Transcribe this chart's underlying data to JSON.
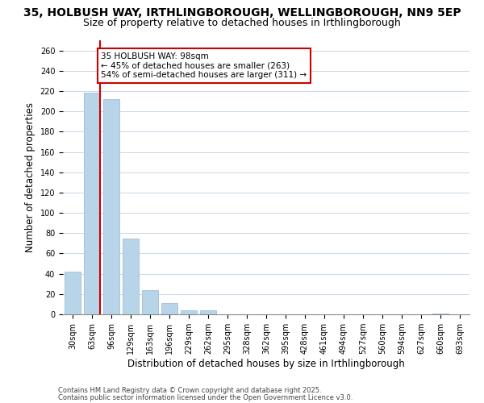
{
  "title": "35, HOLBUSH WAY, IRTHLINGBOROUGH, WELLINGBOROUGH, NN9 5EP",
  "subtitle": "Size of property relative to detached houses in Irthlingborough",
  "xlabel": "Distribution of detached houses by size in Irthlingborough",
  "ylabel": "Number of detached properties",
  "bar_values": [
    42,
    218,
    212,
    75,
    24,
    11,
    4,
    4,
    0,
    0,
    0,
    0,
    0,
    0,
    0,
    0,
    0,
    0,
    0,
    1,
    0
  ],
  "bar_labels": [
    "30sqm",
    "63sqm",
    "96sqm",
    "129sqm",
    "163sqm",
    "196sqm",
    "229sqm",
    "262sqm",
    "295sqm",
    "328sqm",
    "362sqm",
    "395sqm",
    "428sqm",
    "461sqm",
    "494sqm",
    "527sqm",
    "560sqm",
    "594sqm",
    "627sqm",
    "660sqm",
    "693sqm"
  ],
  "bar_color": "#b8d4e8",
  "bar_edge_color": "#a0bfd8",
  "grid_color": "#c8d8e8",
  "vline_color": "#cc0000",
  "annotation_text": "35 HOLBUSH WAY: 98sqm\n← 45% of detached houses are smaller (263)\n54% of semi-detached houses are larger (311) →",
  "annotation_box_color": "#ffffff",
  "annotation_box_edgecolor": "#cc0000",
  "ylim": [
    0,
    270
  ],
  "yticks": [
    0,
    20,
    40,
    60,
    80,
    100,
    120,
    140,
    160,
    180,
    200,
    220,
    240,
    260
  ],
  "footnote1": "Contains HM Land Registry data © Crown copyright and database right 2025.",
  "footnote2": "Contains public sector information licensed under the Open Government Licence v3.0.",
  "bg_color": "#ffffff",
  "title_fontsize": 10,
  "subtitle_fontsize": 9,
  "tick_fontsize": 7,
  "xlabel_fontsize": 8.5,
  "ylabel_fontsize": 8.5,
  "footnote_fontsize": 6.0
}
